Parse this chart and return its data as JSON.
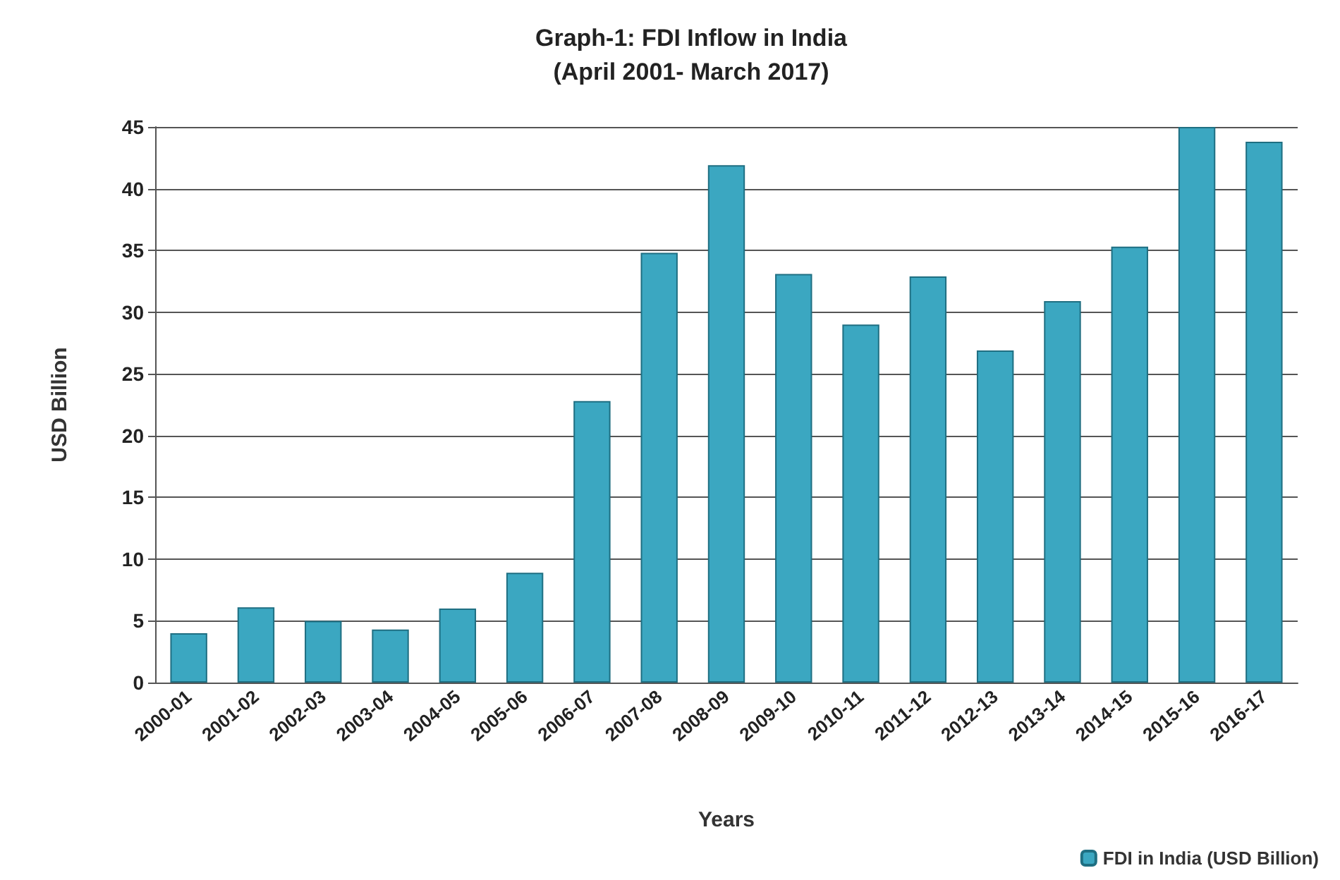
{
  "chart_data": {
    "type": "bar",
    "title": "Graph-1: FDI Inflow in India\n(April 2001- March 2017)",
    "xlabel": "Years",
    "ylabel": "USD Billion",
    "categories": [
      "2000-01",
      "2001-02",
      "2002-03",
      "2003-04",
      "2004-05",
      "2005-06",
      "2006-07",
      "2007-08",
      "2008-09",
      "2009-10",
      "2010-11",
      "2011-12",
      "2012-13",
      "2013-14",
      "2014-15",
      "2015-16",
      "2016-17"
    ],
    "series": [
      {
        "name": "FDI in India (USD Billion)",
        "color": "#3ba7c1",
        "values": [
          4.0,
          6.1,
          5.0,
          4.3,
          6.0,
          8.9,
          22.8,
          34.8,
          41.9,
          33.1,
          29.0,
          32.9,
          26.9,
          30.9,
          35.3,
          45.0,
          43.8
        ]
      }
    ],
    "ylim": [
      0,
      45
    ],
    "yticks": [
      0,
      5,
      10,
      15,
      20,
      25,
      30,
      35,
      40,
      45
    ],
    "grid": "y",
    "legend": "bottom right"
  }
}
